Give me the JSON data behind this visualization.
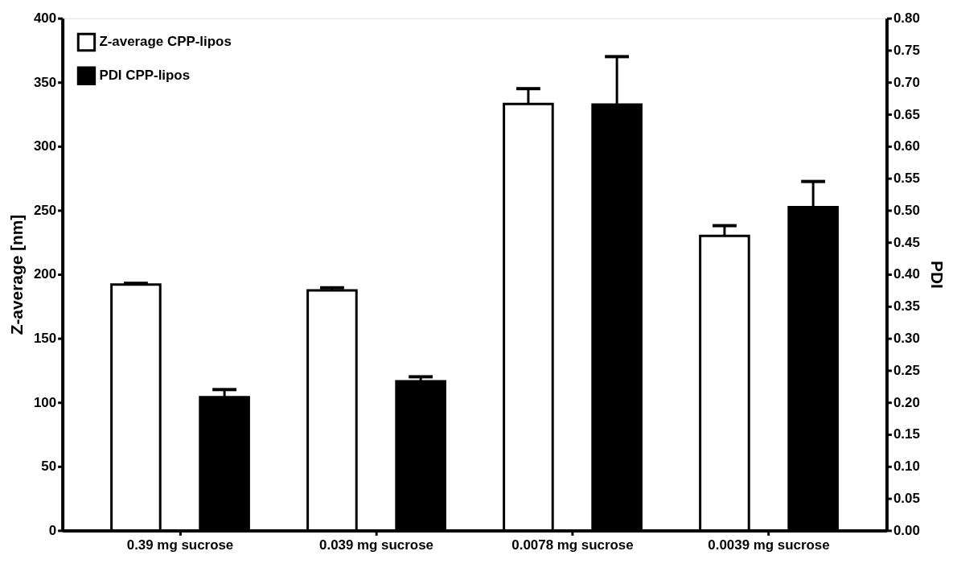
{
  "chart_data": {
    "type": "bar",
    "categories": [
      "0.39 mg sucrose",
      "0.039 mg sucrose",
      "0.0078 mg sucrose",
      "0.0039 mg sucrose"
    ],
    "ylabel": "Z-average [nm]",
    "y2label": "PDI",
    "series": [
      {
        "name": "Z-average CPP-lipos",
        "color": "#ffffff",
        "values": [
          192,
          187.5,
          333,
          230
        ],
        "errors": [
          1,
          2,
          12,
          8
        ]
      },
      {
        "name": "PDI CPP-lipos",
        "color": "#000000",
        "axis": "y2",
        "values": [
          0.208,
          0.233,
          0.665,
          0.505
        ],
        "errors": [
          0.012,
          0.007,
          0.075,
          0.04
        ]
      }
    ],
    "ylim": [
      0,
      400
    ],
    "yticks": [
      0,
      50,
      100,
      150,
      200,
      250,
      300,
      350,
      400
    ],
    "y2lim": [
      0,
      0.8
    ],
    "y2ticks": [
      {
        "value": 0,
        "label": "0.00"
      },
      {
        "value": 0.05,
        "label": "0.05"
      },
      {
        "value": 0.1,
        "label": "0.10"
      },
      {
        "value": 0.15,
        "label": "0.15"
      },
      {
        "value": 0.2,
        "label": "0.20"
      },
      {
        "value": 0.25,
        "label": "0.25"
      },
      {
        "value": 0.3,
        "label": "0.30"
      },
      {
        "value": 0.35,
        "label": "0.35"
      },
      {
        "value": 0.4,
        "label": "0.40"
      },
      {
        "value": 0.45,
        "label": "0.45"
      },
      {
        "value": 0.5,
        "label": "0.50"
      },
      {
        "value": 0.55,
        "label": "0.55"
      },
      {
        "value": 0.6,
        "label": "0.60"
      },
      {
        "value": 0.65,
        "label": "0.65"
      },
      {
        "value": 0.7,
        "label": "0.70"
      },
      {
        "value": 0.75,
        "label": "0.75"
      },
      {
        "value": 0.8,
        "label": "0.80"
      }
    ],
    "legend": "top left",
    "grid": false
  }
}
